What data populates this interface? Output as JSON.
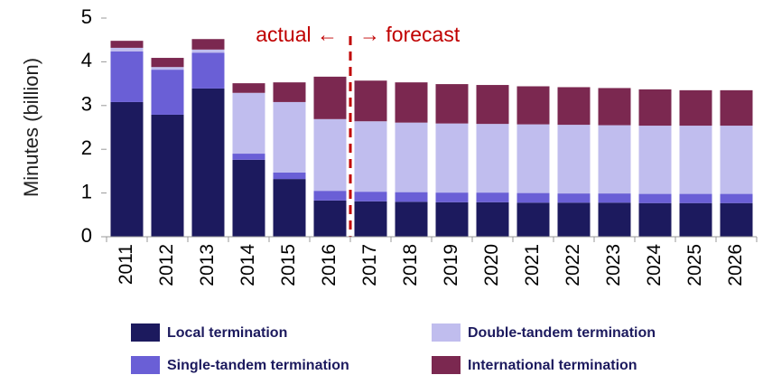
{
  "chart_data": {
    "type": "stacked_bar",
    "y_label": "Minutes (billion)",
    "annotations": [
      "actual ←",
      "→ forecast"
    ],
    "categories": [
      "2011",
      "2012",
      "2013",
      "2014",
      "2015",
      "2016",
      "2017",
      "2018",
      "2019",
      "2020",
      "2021",
      "2022",
      "2023",
      "2024",
      "2025",
      "2026"
    ],
    "series": [
      {
        "name": "Local termination",
        "color": "#1c1a5e",
        "values": [
          3.08,
          2.79,
          3.39,
          1.76,
          1.32,
          0.83,
          0.81,
          0.8,
          0.79,
          0.79,
          0.78,
          0.78,
          0.78,
          0.77,
          0.77,
          0.77
        ]
      },
      {
        "name": "Single-tandem termination",
        "color": "#6a5fd6",
        "values": [
          1.16,
          1.03,
          0.82,
          0.14,
          0.15,
          0.22,
          0.22,
          0.22,
          0.22,
          0.22,
          0.22,
          0.21,
          0.21,
          0.21,
          0.21,
          0.21
        ]
      },
      {
        "name": "Double-tandem termination",
        "color": "#c0bdee",
        "values": [
          0.08,
          0.06,
          0.07,
          1.39,
          1.61,
          1.64,
          1.61,
          1.59,
          1.58,
          1.57,
          1.57,
          1.57,
          1.56,
          1.56,
          1.56,
          1.56
        ]
      },
      {
        "name": "International termination",
        "color": "#7b2850",
        "values": [
          0.16,
          0.21,
          0.24,
          0.22,
          0.45,
          0.97,
          0.93,
          0.92,
          0.9,
          0.89,
          0.87,
          0.86,
          0.85,
          0.83,
          0.81,
          0.81
        ]
      }
    ],
    "ylim": [
      0,
      5
    ],
    "yticks": [
      0,
      1,
      2,
      3,
      4,
      5
    ],
    "grid": false
  }
}
